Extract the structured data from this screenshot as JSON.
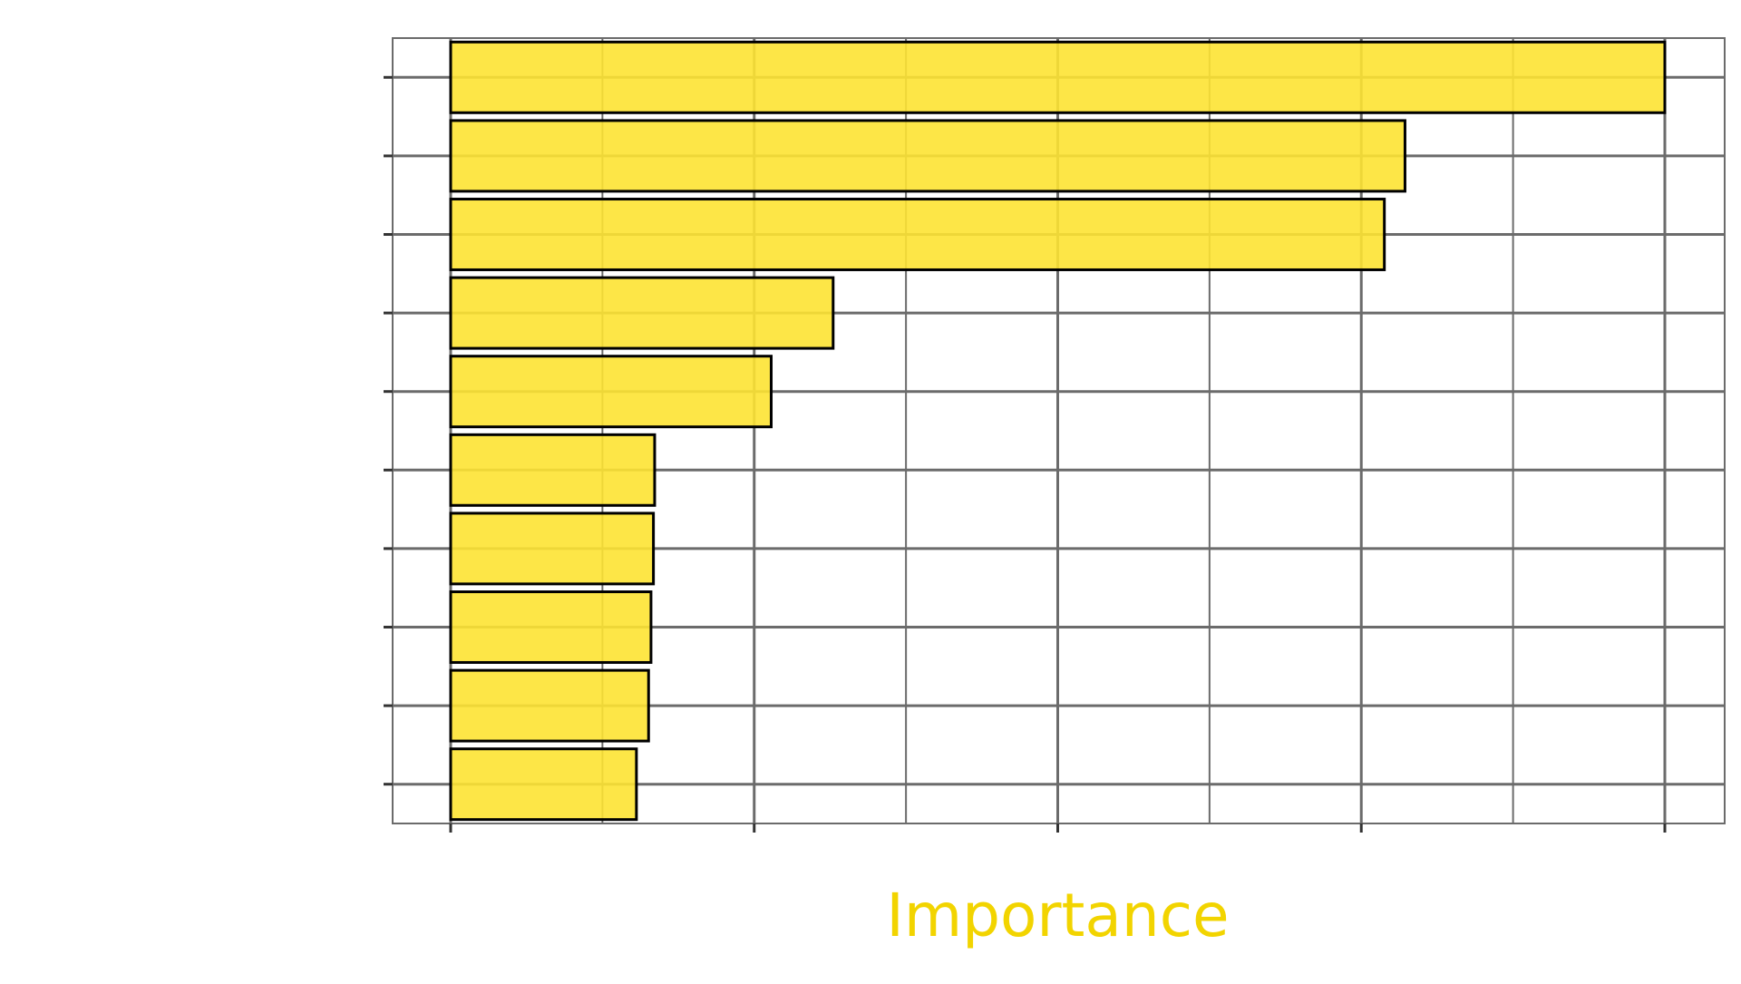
{
  "chart_data": {
    "type": "bar",
    "orientation": "horizontal",
    "categories": [
      "",
      "",
      "",
      "",
      "",
      "",
      "",
      "",
      "",
      ""
    ],
    "values": [
      100,
      78.6,
      76.9,
      31.5,
      26.4,
      16.8,
      16.7,
      16.5,
      16.3,
      15.3
    ],
    "xlabel": "Importance",
    "ylabel": "",
    "xlim": [
      -5,
      105
    ],
    "x_ticks": [
      0,
      25,
      50,
      75,
      100
    ],
    "x_minor_ticks": [
      12.5,
      37.5,
      62.5,
      87.5
    ],
    "grid": true,
    "legend": "none",
    "colors": {
      "bar_fill": "#fde333",
      "bar_stroke": "#000000",
      "grid": "#6b6b6b",
      "axis_title": "#f2d400",
      "tick_label": "#e8e8e8",
      "background": "#ffffff"
    }
  }
}
